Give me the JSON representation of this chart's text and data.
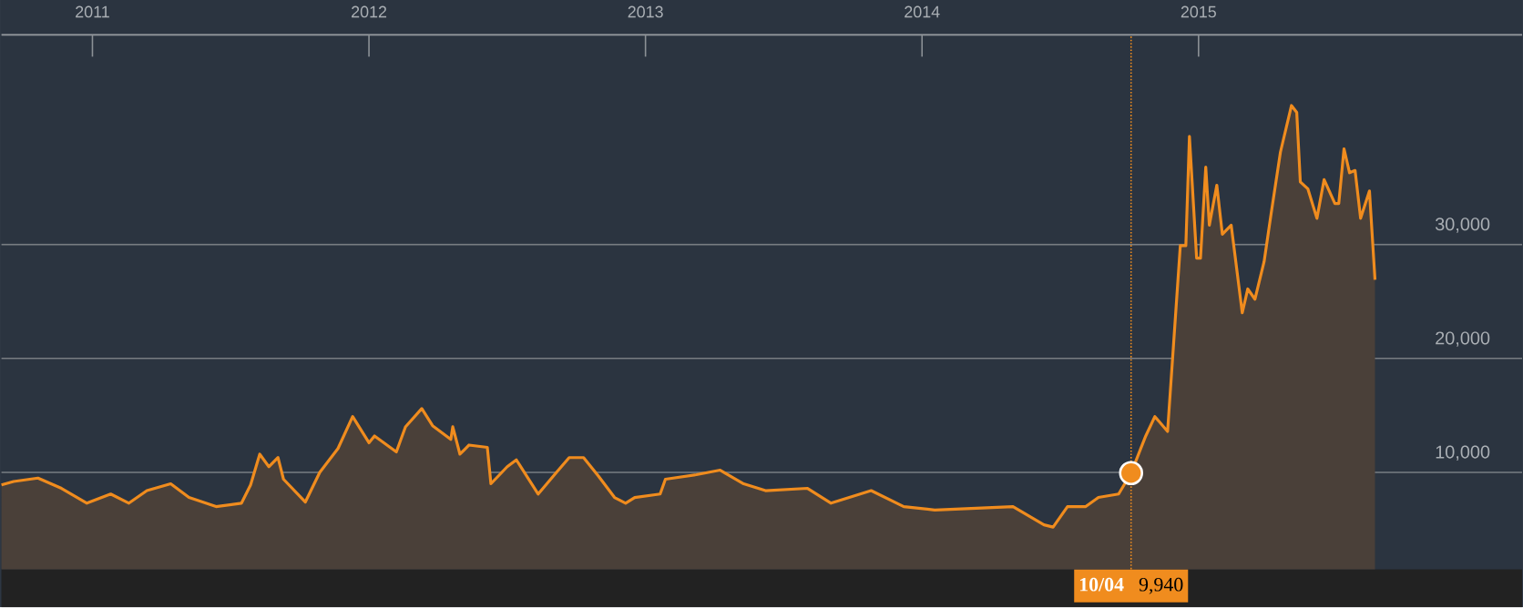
{
  "chart_data": {
    "type": "area",
    "color": "#f08c1e",
    "x": [
      2010.671,
      2010.715,
      2010.803,
      2010.888,
      2010.98,
      2011.066,
      2011.132,
      2011.197,
      2011.283,
      2011.349,
      2011.447,
      2011.539,
      2011.572,
      2011.605,
      2011.638,
      2011.671,
      2011.691,
      2011.77,
      2011.822,
      2011.888,
      2011.941,
      2012.0,
      2012.02,
      2012.099,
      2012.132,
      2012.191,
      2012.23,
      2012.296,
      2012.303,
      2012.329,
      2012.362,
      2012.428,
      2012.441,
      2012.5,
      2012.533,
      2012.612,
      2012.678,
      2012.724,
      2012.776,
      2012.829,
      2012.888,
      2012.928,
      2012.961,
      2013.053,
      2013.072,
      2013.184,
      2013.27,
      2013.355,
      2013.434,
      2013.586,
      2013.671,
      2013.816,
      2013.934,
      2014.046,
      2014.329,
      2014.441,
      2014.474,
      2014.526,
      2014.592,
      2014.638,
      2014.711,
      2014.756,
      2014.809,
      2014.842,
      2014.888,
      2014.934,
      2014.954,
      2014.967,
      2014.993,
      2015.007,
      2015.026,
      2015.039,
      2015.066,
      2015.086,
      2015.118,
      2015.158,
      2015.178,
      2015.204,
      2015.237,
      2015.263,
      2015.296,
      2015.336,
      2015.355,
      2015.368,
      2015.395,
      2015.428,
      2015.454,
      2015.493,
      2015.507,
      2015.526,
      2015.546,
      2015.566,
      2015.586,
      2015.618,
      2015.638
    ],
    "values": [
      8900,
      9200,
      9500,
      8600,
      7300,
      8100,
      7300,
      8400,
      9000,
      7800,
      7000,
      7300,
      8900,
      11600,
      10500,
      11300,
      9400,
      7400,
      10000,
      12100,
      14900,
      12600,
      13200,
      11800,
      14000,
      15600,
      14100,
      12900,
      14000,
      11600,
      12400,
      12200,
      9000,
      10500,
      11100,
      8100,
      10000,
      11300,
      11300,
      9700,
      7800,
      7300,
      7800,
      8100,
      9400,
      9800,
      10200,
      9000,
      8400,
      8600,
      7300,
      8400,
      7000,
      6700,
      7000,
      5400,
      5200,
      7000,
      7000,
      7800,
      8100,
      9940,
      13200,
      14900,
      13600,
      29900,
      29900,
      39500,
      28800,
      28800,
      36800,
      31700,
      35200,
      30900,
      31700,
      24000,
      26100,
      25200,
      28500,
      32800,
      38100,
      42200,
      41600,
      35500,
      34900,
      32300,
      35700,
      33600,
      33600,
      38400,
      36300,
      36500,
      32300,
      34700,
      26900
    ],
    "xlim": [
      2010.671,
      2016.17
    ],
    "xticks": [
      2011,
      2012,
      2013,
      2014,
      2015
    ],
    "ylim": [
      1500,
      48400
    ],
    "yticks": [
      {
        "value": 10000,
        "label": "10,000"
      },
      {
        "value": 20000,
        "label": "20,000"
      },
      {
        "value": 30000,
        "label": "30,000"
      }
    ],
    "grid": "y",
    "ref_lines": [
      {
        "axis": "x",
        "value": 2014.756,
        "color": "#f08c1e",
        "line_style": "dotted"
      }
    ],
    "annotations": [
      "10/04",
      "9,940"
    ]
  }
}
